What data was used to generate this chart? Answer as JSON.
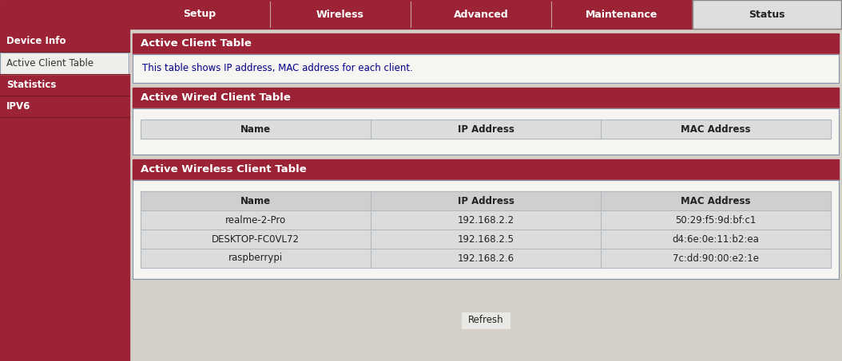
{
  "bg_color": "#d4d0c8",
  "dark_red": "#9b2335",
  "content_bg": "#f0eeeb",
  "white": "#ffffff",
  "light_gray": "#dcdcdc",
  "mid_gray": "#d0cece",
  "dark_gray_text": "#222222",
  "blue_text": "#000080",
  "nav_tabs": [
    "Setup",
    "Wireless",
    "Advanced",
    "Maintenance",
    "Status"
  ],
  "nav_tab_active": "Status",
  "sidebar_items": [
    "Device Info",
    "Active Client Table",
    "Statistics",
    "IPV6"
  ],
  "sidebar_active": "Active Client Table",
  "section1_title": "Active Client Table",
  "section1_desc": "This table shows IP address, MAC address for each client.",
  "section2_title": "Active Wired Client Table",
  "wired_headers": [
    "Name",
    "IP Address",
    "MAC Address"
  ],
  "section3_title": "Active Wireless Client Table",
  "wireless_headers": [
    "Name",
    "IP Address",
    "MAC Address"
  ],
  "wireless_data": [
    [
      "realme-2-Pro",
      "192.168.2.2",
      "50:29:f5:9d:bf:c1"
    ],
    [
      "DESKTOP-FC0VL72",
      "192.168.2.5",
      "d4:6e:0e:11:b2:ea"
    ],
    [
      "raspberrypi",
      "192.168.2.6",
      "7c:dd:90:00:e2:1e"
    ]
  ],
  "refresh_btn": "Refresh",
  "tab_text_color": "#ffffff",
  "status_tab_bg": "#e0dedd",
  "status_tab_text": "#222222",
  "sidebar_divider": "#7a1520",
  "border_color": "#a0b0c0",
  "table_border": "#b0b8c0"
}
